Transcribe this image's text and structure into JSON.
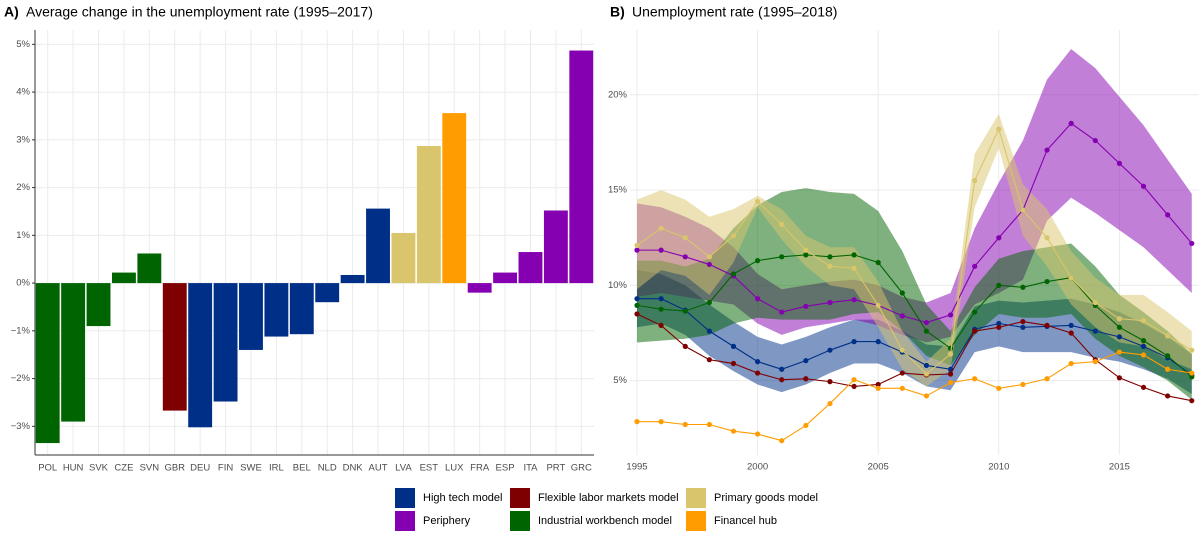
{
  "chart_data": [
    {
      "type": "bar",
      "label": "A)",
      "title": "Average change in the unemployment rate (1995–2017)",
      "categories": [
        "POL",
        "HUN",
        "SVK",
        "CZE",
        "SVN",
        "GBR",
        "DEU",
        "FIN",
        "SWE",
        "IRL",
        "BEL",
        "NLD",
        "DNK",
        "AUT",
        "LVA",
        "EST",
        "LUX",
        "FRA",
        "ESP",
        "ITA",
        "PRT",
        "GRC"
      ],
      "values": [
        -3.35,
        -2.9,
        -0.9,
        0.22,
        0.62,
        -2.67,
        -3.02,
        -2.48,
        -1.4,
        -1.12,
        -1.07,
        -0.4,
        0.17,
        1.56,
        1.05,
        2.87,
        3.56,
        -0.2,
        0.22,
        0.65,
        1.52,
        4.87
      ],
      "colors": [
        "#006400",
        "#006400",
        "#006400",
        "#006400",
        "#006400",
        "#7f0000",
        "#002f87",
        "#002f87",
        "#002f87",
        "#002f87",
        "#002f87",
        "#002f87",
        "#002f87",
        "#002f87",
        "#d9c56b",
        "#d9c56b",
        "#ff9d00",
        "#8500b0",
        "#8500b0",
        "#8500b0",
        "#8500b0",
        "#8500b0"
      ],
      "ylim": [
        -3.6,
        5.3
      ],
      "yticks": [
        {
          "value": -3,
          "label": "−3%"
        },
        {
          "value": -2,
          "label": "−2%"
        },
        {
          "value": -1,
          "label": "−1%"
        },
        {
          "value": 0,
          "label": "0%"
        },
        {
          "value": 1,
          "label": "1%"
        },
        {
          "value": 2,
          "label": "2%"
        },
        {
          "value": 3,
          "label": "3%"
        },
        {
          "value": 4,
          "label": "4%"
        },
        {
          "value": 5,
          "label": "5%"
        }
      ],
      "grid": true
    },
    {
      "type": "line",
      "label": "B)",
      "title": "Unemployment rate (1995–2018)",
      "x": [
        1995,
        1996,
        1997,
        1998,
        1999,
        2000,
        2001,
        2002,
        2003,
        2004,
        2005,
        2006,
        2007,
        2008,
        2009,
        2010,
        2011,
        2012,
        2013,
        2014,
        2015,
        2016,
        2017,
        2018
      ],
      "xlim": [
        1995,
        2018.3
      ],
      "xticks": [
        1995,
        2000,
        2005,
        2010,
        2015
      ],
      "ylim": [
        1.1,
        23.4
      ],
      "yticks": [
        {
          "value": 5,
          "label": "5%"
        },
        {
          "value": 10,
          "label": "10%"
        },
        {
          "value": 15,
          "label": "15%"
        },
        {
          "value": 20,
          "label": "20%"
        }
      ],
      "grid": true,
      "legend": "bottom",
      "series": [
        {
          "name": "High tech model",
          "color": "#002f87",
          "values": [
            9.3,
            9.3,
            8.7,
            7.6,
            6.8,
            6.0,
            5.6,
            6.05,
            6.6,
            7.05,
            7.05,
            6.5,
            5.8,
            5.6,
            7.7,
            8.0,
            7.8,
            7.85,
            7.9,
            7.6,
            7.3,
            6.8,
            6.2,
            5.3
          ],
          "upper": [
            10.8,
            10.6,
            10.0,
            9.0,
            8.1,
            7.3,
            6.9,
            7.3,
            7.8,
            8.2,
            8.2,
            7.6,
            6.9,
            6.8,
            8.9,
            9.2,
            9.1,
            9.2,
            9.3,
            9.0,
            8.6,
            8.0,
            7.3,
            6.4
          ],
          "lower": [
            7.8,
            8.0,
            7.4,
            6.3,
            5.5,
            4.8,
            4.4,
            4.8,
            5.4,
            5.9,
            5.9,
            5.4,
            4.7,
            4.5,
            6.5,
            6.8,
            6.5,
            6.5,
            6.5,
            6.2,
            6.0,
            5.6,
            5.1,
            4.3
          ]
        },
        {
          "name": "Periphery",
          "color": "#8500b0",
          "values": [
            11.85,
            11.85,
            11.5,
            11.1,
            10.5,
            9.3,
            8.6,
            8.9,
            9.1,
            9.25,
            8.95,
            8.4,
            8.05,
            8.45,
            11.0,
            12.5,
            13.95,
            17.1,
            18.5,
            17.6,
            16.4,
            15.2,
            13.7,
            12.2
          ],
          "upper": [
            14.3,
            14.1,
            13.6,
            13.0,
            12.0,
            10.6,
            9.8,
            10.0,
            10.2,
            10.3,
            10.0,
            9.4,
            9.1,
            9.6,
            13.0,
            15.4,
            17.6,
            20.8,
            22.4,
            21.4,
            19.9,
            18.4,
            16.6,
            14.8
          ],
          "lower": [
            9.4,
            9.6,
            9.4,
            9.2,
            9.0,
            8.0,
            7.4,
            7.8,
            8.0,
            8.2,
            7.9,
            7.4,
            7.0,
            7.3,
            9.0,
            9.6,
            10.3,
            13.4,
            14.6,
            13.8,
            12.9,
            12.0,
            10.8,
            9.6
          ]
        },
        {
          "name": "Flexible labor markets model",
          "color": "#7f0000",
          "values": [
            8.5,
            7.9,
            6.8,
            6.1,
            5.9,
            5.4,
            5.05,
            5.1,
            4.95,
            4.7,
            4.8,
            5.4,
            5.3,
            5.35,
            7.6,
            7.8,
            8.1,
            7.9,
            7.5,
            6.1,
            5.15,
            4.65,
            4.2,
            3.95
          ]
        },
        {
          "name": "Industrial workbench model",
          "color": "#006400",
          "values": [
            8.95,
            8.75,
            8.65,
            9.1,
            10.6,
            11.3,
            11.5,
            11.6,
            11.5,
            11.6,
            11.2,
            9.6,
            7.6,
            6.7,
            8.6,
            10.0,
            9.9,
            10.2,
            10.4,
            8.95,
            7.8,
            7.1,
            6.3,
            5.2
          ],
          "upper": [
            11.3,
            11.3,
            11.0,
            11.4,
            13.0,
            14.2,
            14.9,
            15.1,
            14.9,
            14.8,
            13.9,
            11.8,
            9.0,
            7.6,
            9.9,
            11.4,
            11.8,
            12.0,
            12.2,
            11.0,
            9.5,
            8.6,
            7.6,
            6.4
          ],
          "lower": [
            7.0,
            7.1,
            7.2,
            7.4,
            8.0,
            8.3,
            8.2,
            8.2,
            8.2,
            8.5,
            8.6,
            7.6,
            6.3,
            5.8,
            7.4,
            8.5,
            8.3,
            8.3,
            8.5,
            7.2,
            6.3,
            5.7,
            5.0,
            4.0
          ]
        },
        {
          "name": "Primary goods model",
          "color": "#d9c56b",
          "values": [
            12.1,
            13.0,
            12.5,
            11.5,
            12.6,
            14.4,
            13.2,
            11.85,
            11.0,
            10.9,
            8.95,
            6.6,
            5.35,
            6.4,
            15.5,
            18.2,
            13.95,
            12.5,
            10.4,
            9.1,
            8.25,
            8.15,
            7.35,
            6.6
          ],
          "upper": [
            14.5,
            15.0,
            14.5,
            13.6,
            14.0,
            14.7,
            14.0,
            12.6,
            12.0,
            12.0,
            10.2,
            7.6,
            6.0,
            7.2,
            16.9,
            19.0,
            15.3,
            14.0,
            11.8,
            10.4,
            9.5,
            9.5,
            8.6,
            7.6
          ],
          "lower": [
            9.8,
            10.8,
            10.5,
            9.5,
            11.2,
            14.1,
            12.4,
            11.0,
            10.0,
            9.8,
            7.8,
            5.6,
            4.7,
            5.6,
            14.1,
            17.2,
            12.6,
            11.0,
            9.0,
            7.8,
            7.0,
            6.8,
            6.1,
            5.6
          ]
        },
        {
          "name": "Financel hub",
          "color": "#ff9d00",
          "values": [
            2.85,
            2.85,
            2.7,
            2.7,
            2.35,
            2.2,
            1.85,
            2.65,
            3.8,
            5.05,
            4.6,
            4.6,
            4.2,
            4.9,
            5.1,
            4.6,
            4.8,
            5.1,
            5.9,
            6.0,
            6.5,
            6.35,
            5.6,
            5.4
          ]
        }
      ]
    }
  ]
}
